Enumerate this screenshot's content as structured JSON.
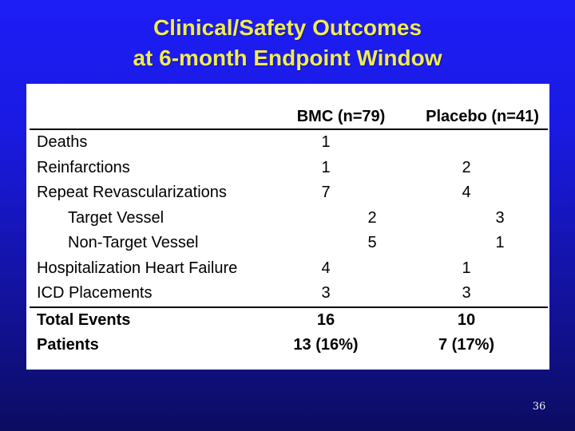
{
  "title": {
    "line1": "Clinical/Safety Outcomes",
    "line2": "at 6-month Endpoint Window"
  },
  "table": {
    "col_bmc": "BMC (n=79)",
    "col_placebo": "Placebo (n=41)",
    "rows": [
      {
        "label": "Deaths",
        "bmc": "1",
        "placebo": "",
        "indent": false,
        "sub": false,
        "bold": false,
        "rule_below": false
      },
      {
        "label": "Reinfarctions",
        "bmc": "1",
        "placebo": "2",
        "indent": false,
        "sub": false,
        "bold": false,
        "rule_below": false
      },
      {
        "label": "Repeat Revascularizations",
        "bmc": "7",
        "placebo": "4",
        "indent": false,
        "sub": false,
        "bold": false,
        "rule_below": false
      },
      {
        "label": "Target Vessel",
        "bmc": "2",
        "placebo": "3",
        "indent": true,
        "sub": true,
        "bold": false,
        "rule_below": false
      },
      {
        "label": "Non-Target Vessel",
        "bmc": "5",
        "placebo": "1",
        "indent": true,
        "sub": true,
        "bold": false,
        "rule_below": false
      },
      {
        "label": "Hospitalization Heart Failure",
        "bmc": "4",
        "placebo": "1",
        "indent": false,
        "sub": false,
        "bold": false,
        "rule_below": false
      },
      {
        "label": "ICD Placements",
        "bmc": "3",
        "placebo": "3",
        "indent": false,
        "sub": false,
        "bold": false,
        "rule_below": true
      },
      {
        "label": "Total Events",
        "bmc": "16",
        "placebo": "10",
        "indent": false,
        "sub": false,
        "bold": true,
        "rule_below": false
      },
      {
        "label": "Patients",
        "bmc": "13 (16%)",
        "placebo": "7 (17%)",
        "indent": false,
        "sub": false,
        "bold": true,
        "rule_below": false
      }
    ]
  },
  "page_number": "36",
  "colors": {
    "background_top": "#1d1df6",
    "background_bottom": "#0c0c62",
    "title_text": "#f0ec52",
    "table_background": "#ffffff",
    "table_text": "#000000",
    "page_number_text": "#f2f2f2"
  }
}
